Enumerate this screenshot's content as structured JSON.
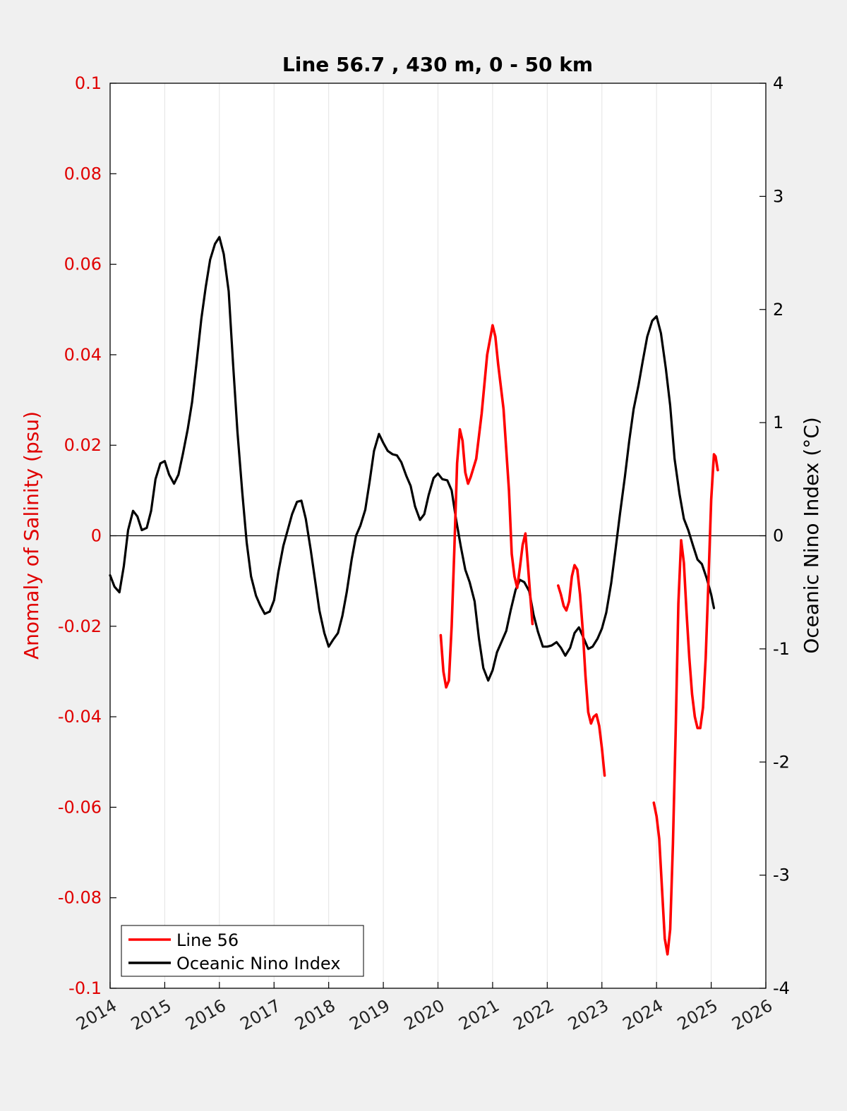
{
  "chart_data": {
    "type": "line",
    "title": "Line 56.7 , 430 m, 0 - 50 km",
    "ylabel_left": "Anomaly of Salinity (psu)",
    "ylabel_right": "Oceanic Nino Index (°C)",
    "xlim": [
      2014,
      2026
    ],
    "ylim_left": [
      -0.1,
      0.1
    ],
    "ylim_right": [
      -4,
      4
    ],
    "x_ticks": [
      "2014",
      "2015",
      "2016",
      "2017",
      "2018",
      "2019",
      "2020",
      "2021",
      "2022",
      "2023",
      "2024",
      "2025",
      "2026"
    ],
    "y_left_ticks": [
      "0.1",
      "0.08",
      "0.06",
      "0.04",
      "0.02",
      "0",
      "-0.02",
      "-0.04",
      "-0.06",
      "-0.08",
      "-0.1"
    ],
    "y_right_ticks": [
      "4",
      "3",
      "2",
      "1",
      "0",
      "-1",
      "-2",
      "-3",
      "-4"
    ],
    "grid": "vertical",
    "legend": {
      "position": "bottom-left",
      "entries": [
        "Line 56",
        "Oceanic Nino Index"
      ]
    },
    "colors": {
      "line56": "#ff0000",
      "oni": "#000000",
      "left_axis": "#e00000"
    },
    "series": [
      {
        "name": "Line 56",
        "axis": "left",
        "segments": [
          [
            [
              2020.05,
              -0.022
            ],
            [
              2020.1,
              -0.03
            ],
            [
              2020.15,
              -0.0335
            ],
            [
              2020.2,
              -0.032
            ],
            [
              2020.25,
              -0.02
            ],
            [
              2020.3,
              -0.003
            ],
            [
              2020.35,
              0.016
            ],
            [
              2020.4,
              0.0235
            ],
            [
              2020.45,
              0.021
            ],
            [
              2020.5,
              0.014
            ],
            [
              2020.55,
              0.0115
            ],
            [
              2020.6,
              0.013
            ],
            [
              2020.7,
              0.017
            ],
            [
              2020.8,
              0.027
            ],
            [
              2020.9,
              0.04
            ],
            [
              2021.0,
              0.0465
            ],
            [
              2021.05,
              0.044
            ],
            [
              2021.1,
              0.038
            ],
            [
              2021.2,
              0.028
            ],
            [
              2021.3,
              0.01
            ],
            [
              2021.35,
              -0.004
            ],
            [
              2021.4,
              -0.009
            ],
            [
              2021.45,
              -0.0115
            ],
            [
              2021.5,
              -0.007
            ],
            [
              2021.55,
              -0.002
            ],
            [
              2021.6,
              0.0005
            ],
            [
              2021.65,
              -0.007
            ],
            [
              2021.7,
              -0.015
            ],
            [
              2021.73,
              -0.0195
            ]
          ],
          [
            [
              2022.2,
              -0.011
            ],
            [
              2022.25,
              -0.013
            ],
            [
              2022.3,
              -0.0155
            ],
            [
              2022.35,
              -0.0165
            ],
            [
              2022.4,
              -0.0145
            ],
            [
              2022.45,
              -0.009
            ],
            [
              2022.5,
              -0.0065
            ],
            [
              2022.55,
              -0.0075
            ],
            [
              2022.6,
              -0.013
            ],
            [
              2022.65,
              -0.021
            ],
            [
              2022.7,
              -0.031
            ],
            [
              2022.75,
              -0.039
            ],
            [
              2022.8,
              -0.0415
            ],
            [
              2022.85,
              -0.04
            ],
            [
              2022.9,
              -0.0395
            ],
            [
              2022.95,
              -0.042
            ],
            [
              2023.0,
              -0.047
            ],
            [
              2023.05,
              -0.053
            ]
          ],
          [
            [
              2023.95,
              -0.059
            ],
            [
              2024.0,
              -0.062
            ],
            [
              2024.05,
              -0.067
            ],
            [
              2024.1,
              -0.078
            ],
            [
              2024.15,
              -0.089
            ],
            [
              2024.2,
              -0.0925
            ],
            [
              2024.25,
              -0.087
            ],
            [
              2024.3,
              -0.068
            ],
            [
              2024.35,
              -0.043
            ],
            [
              2024.4,
              -0.015
            ],
            [
              2024.45,
              -0.001
            ],
            [
              2024.5,
              -0.006
            ],
            [
              2024.55,
              -0.017
            ],
            [
              2024.6,
              -0.027
            ],
            [
              2024.65,
              -0.035
            ],
            [
              2024.7,
              -0.04
            ],
            [
              2024.75,
              -0.0425
            ],
            [
              2024.8,
              -0.0425
            ],
            [
              2024.85,
              -0.038
            ],
            [
              2024.9,
              -0.027
            ],
            [
              2024.95,
              -0.01
            ],
            [
              2025.0,
              0.008
            ],
            [
              2025.05,
              0.018
            ],
            [
              2025.08,
              0.0175
            ],
            [
              2025.12,
              0.0145
            ]
          ]
        ]
      },
      {
        "name": "Oceanic Nino Index",
        "axis": "right",
        "points": [
          [
            2014.0,
            -0.35
          ],
          [
            2014.08,
            -0.45
          ],
          [
            2014.17,
            -0.5
          ],
          [
            2014.25,
            -0.27
          ],
          [
            2014.33,
            0.05
          ],
          [
            2014.42,
            0.22
          ],
          [
            2014.5,
            0.17
          ],
          [
            2014.58,
            0.05
          ],
          [
            2014.67,
            0.07
          ],
          [
            2014.75,
            0.22
          ],
          [
            2014.83,
            0.5
          ],
          [
            2014.92,
            0.64
          ],
          [
            2015.0,
            0.66
          ],
          [
            2015.08,
            0.54
          ],
          [
            2015.17,
            0.46
          ],
          [
            2015.25,
            0.54
          ],
          [
            2015.33,
            0.72
          ],
          [
            2015.42,
            0.94
          ],
          [
            2015.5,
            1.18
          ],
          [
            2015.58,
            1.52
          ],
          [
            2015.67,
            1.92
          ],
          [
            2015.75,
            2.2
          ],
          [
            2015.83,
            2.44
          ],
          [
            2015.92,
            2.58
          ],
          [
            2016.0,
            2.64
          ],
          [
            2016.08,
            2.49
          ],
          [
            2016.17,
            2.16
          ],
          [
            2016.25,
            1.52
          ],
          [
            2016.33,
            0.92
          ],
          [
            2016.42,
            0.38
          ],
          [
            2016.5,
            -0.06
          ],
          [
            2016.58,
            -0.36
          ],
          [
            2016.67,
            -0.53
          ],
          [
            2016.75,
            -0.62
          ],
          [
            2016.83,
            -0.69
          ],
          [
            2016.92,
            -0.67
          ],
          [
            2017.0,
            -0.57
          ],
          [
            2017.08,
            -0.32
          ],
          [
            2017.17,
            -0.09
          ],
          [
            2017.25,
            0.05
          ],
          [
            2017.33,
            0.19
          ],
          [
            2017.42,
            0.3
          ],
          [
            2017.5,
            0.31
          ],
          [
            2017.58,
            0.15
          ],
          [
            2017.67,
            -0.12
          ],
          [
            2017.75,
            -0.39
          ],
          [
            2017.83,
            -0.66
          ],
          [
            2017.92,
            -0.86
          ],
          [
            2018.0,
            -0.98
          ],
          [
            2018.08,
            -0.92
          ],
          [
            2018.17,
            -0.86
          ],
          [
            2018.25,
            -0.71
          ],
          [
            2018.33,
            -0.5
          ],
          [
            2018.42,
            -0.21
          ],
          [
            2018.5,
            0.0
          ],
          [
            2018.58,
            0.09
          ],
          [
            2018.67,
            0.23
          ],
          [
            2018.75,
            0.48
          ],
          [
            2018.83,
            0.75
          ],
          [
            2018.92,
            0.9
          ],
          [
            2019.0,
            0.82
          ],
          [
            2019.08,
            0.75
          ],
          [
            2019.17,
            0.72
          ],
          [
            2019.25,
            0.71
          ],
          [
            2019.33,
            0.65
          ],
          [
            2019.42,
            0.53
          ],
          [
            2019.5,
            0.44
          ],
          [
            2019.58,
            0.26
          ],
          [
            2019.67,
            0.14
          ],
          [
            2019.75,
            0.19
          ],
          [
            2019.83,
            0.36
          ],
          [
            2019.92,
            0.51
          ],
          [
            2020.0,
            0.55
          ],
          [
            2020.08,
            0.5
          ],
          [
            2020.17,
            0.49
          ],
          [
            2020.25,
            0.4
          ],
          [
            2020.33,
            0.15
          ],
          [
            2020.42,
            -0.1
          ],
          [
            2020.5,
            -0.3
          ],
          [
            2020.58,
            -0.41
          ],
          [
            2020.67,
            -0.58
          ],
          [
            2020.75,
            -0.91
          ],
          [
            2020.83,
            -1.17
          ],
          [
            2020.92,
            -1.28
          ],
          [
            2021.0,
            -1.19
          ],
          [
            2021.08,
            -1.03
          ],
          [
            2021.17,
            -0.93
          ],
          [
            2021.25,
            -0.84
          ],
          [
            2021.33,
            -0.66
          ],
          [
            2021.42,
            -0.48
          ],
          [
            2021.5,
            -0.39
          ],
          [
            2021.58,
            -0.41
          ],
          [
            2021.67,
            -0.49
          ],
          [
            2021.75,
            -0.7
          ],
          [
            2021.83,
            -0.85
          ],
          [
            2021.92,
            -0.98
          ],
          [
            2022.0,
            -0.98
          ],
          [
            2022.08,
            -0.97
          ],
          [
            2022.17,
            -0.94
          ],
          [
            2022.25,
            -0.99
          ],
          [
            2022.33,
            -1.06
          ],
          [
            2022.42,
            -0.99
          ],
          [
            2022.5,
            -0.86
          ],
          [
            2022.58,
            -0.81
          ],
          [
            2022.67,
            -0.91
          ],
          [
            2022.75,
            -1.0
          ],
          [
            2022.83,
            -0.98
          ],
          [
            2022.92,
            -0.91
          ],
          [
            2023.0,
            -0.82
          ],
          [
            2023.08,
            -0.68
          ],
          [
            2023.17,
            -0.42
          ],
          [
            2023.25,
            -0.12
          ],
          [
            2023.33,
            0.19
          ],
          [
            2023.42,
            0.52
          ],
          [
            2023.5,
            0.84
          ],
          [
            2023.58,
            1.12
          ],
          [
            2023.67,
            1.33
          ],
          [
            2023.75,
            1.55
          ],
          [
            2023.83,
            1.76
          ],
          [
            2023.92,
            1.9
          ],
          [
            2024.0,
            1.94
          ],
          [
            2024.08,
            1.79
          ],
          [
            2024.17,
            1.48
          ],
          [
            2024.25,
            1.15
          ],
          [
            2024.33,
            0.68
          ],
          [
            2024.42,
            0.37
          ],
          [
            2024.5,
            0.15
          ],
          [
            2024.58,
            0.05
          ],
          [
            2024.67,
            -0.09
          ],
          [
            2024.75,
            -0.21
          ],
          [
            2024.83,
            -0.25
          ],
          [
            2024.92,
            -0.38
          ],
          [
            2025.0,
            -0.52
          ],
          [
            2025.05,
            -0.64
          ]
        ]
      }
    ]
  }
}
